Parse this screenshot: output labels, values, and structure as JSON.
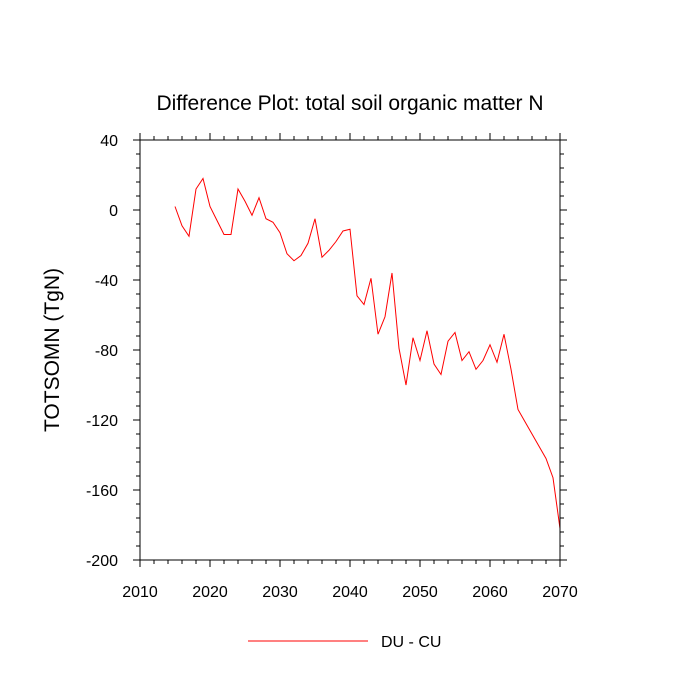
{
  "chart_data": {
    "type": "line",
    "title": "Difference Plot: total soil organic matter N",
    "xlabel": "",
    "ylabel": "TOTSOMN  (TgN)",
    "xlim": [
      2010,
      2070
    ],
    "ylim": [
      -200,
      40
    ],
    "xticks": [
      2010,
      2020,
      2030,
      2040,
      2050,
      2060,
      2070
    ],
    "yticks": [
      40,
      0,
      -40,
      -80,
      -120,
      -160,
      -200
    ],
    "grid": false,
    "legend_position": "bottom-center",
    "series": [
      {
        "name": "DU - CU",
        "color": "#ff0000",
        "x": [
          2015,
          2016,
          2017,
          2018,
          2019,
          2020,
          2021,
          2022,
          2023,
          2024,
          2025,
          2026,
          2027,
          2028,
          2029,
          2030,
          2031,
          2032,
          2033,
          2034,
          2035,
          2036,
          2037,
          2038,
          2039,
          2040,
          2041,
          2042,
          2043,
          2044,
          2045,
          2046,
          2047,
          2048,
          2049,
          2050,
          2051,
          2052,
          2053,
          2054,
          2055,
          2056,
          2057,
          2058,
          2059,
          2060,
          2061,
          2062,
          2063,
          2064,
          2065,
          2066,
          2067,
          2068,
          2069,
          2070
        ],
        "values": [
          2,
          -9,
          -15,
          12,
          18,
          2,
          -6,
          -14,
          -14,
          12,
          5,
          -3,
          7,
          -5,
          -7,
          -13,
          -25,
          -29,
          -26,
          -19,
          -5,
          -27,
          -23,
          -18,
          -12,
          -11,
          -49,
          -54,
          -39,
          -71,
          -61,
          -36,
          -79,
          -100,
          -73,
          -86,
          -69,
          -88,
          -94,
          -75,
          -70,
          -86,
          -81,
          -91,
          -86,
          -77,
          -87,
          -71,
          -91,
          -114,
          -121,
          -128,
          -135,
          -142,
          -153,
          -182
        ]
      }
    ]
  }
}
